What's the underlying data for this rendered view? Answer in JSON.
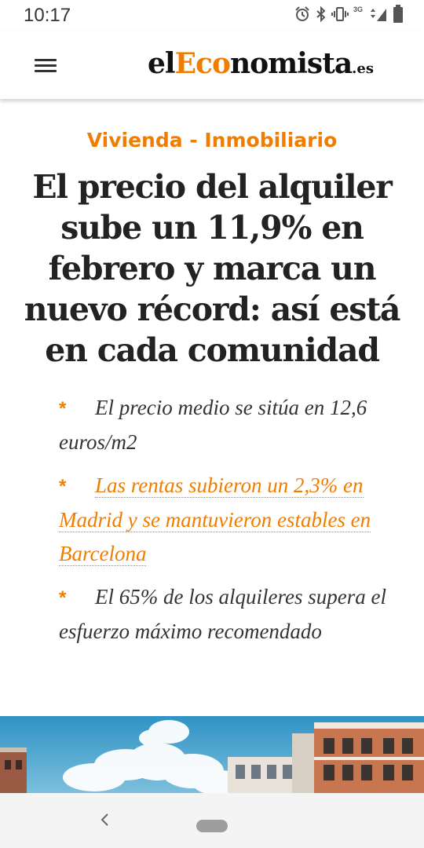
{
  "status_bar": {
    "time": "10:17",
    "network": "3G",
    "icons": [
      "alarm-icon",
      "bluetooth-icon",
      "vibrate-icon",
      "signal-icon",
      "battery-icon"
    ]
  },
  "header": {
    "logo_prefix": "el",
    "logo_accent": "Eco",
    "logo_rest": "nomista",
    "logo_tld": ".es"
  },
  "article": {
    "category": "Vivienda - Inmobiliario",
    "headline": "El precio del alquiler sube un 11,9% en febrero y marca un nuevo récord: así está en cada comunidad",
    "bullets": [
      {
        "text": "El precio medio se sitúa en 12,6 euros/m2",
        "link": false
      },
      {
        "text": "Las rentas subieron un 2,3% en Madrid y se mantuvieron estables en Barcelona",
        "link": true
      },
      {
        "text": "El 65% de los alquileres supera el esfuerzo máximo recomendado",
        "link": false
      }
    ],
    "bullet_marker": "*"
  },
  "colors": {
    "accent": "#f07d00",
    "text": "#222222",
    "sky": "#3f9ec8"
  }
}
